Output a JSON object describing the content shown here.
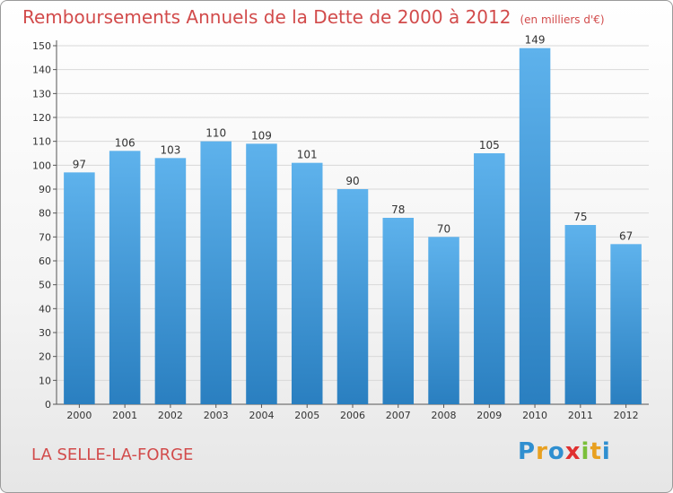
{
  "header": {
    "title": "Remboursements Annuels de la Dette de 2000 à 2012",
    "unit": "(en milliers d'€)"
  },
  "footer": {
    "city": "LA SELLE-LA-FORGE",
    "logo": "Proxiti"
  },
  "colors": {
    "bar_top": "#5eb2ec",
    "bar_bottom": "#2a7fc0",
    "title": "#d24b4b",
    "grid": "#d8d8d8"
  },
  "chart_data": {
    "type": "bar",
    "title": "Remboursements Annuels de la Dette de 2000 à 2012",
    "ylabel": "",
    "xlabel": "",
    "categories": [
      "2000",
      "2001",
      "2002",
      "2003",
      "2004",
      "2005",
      "2006",
      "2007",
      "2008",
      "2009",
      "2010",
      "2011",
      "2012"
    ],
    "values": [
      97,
      106,
      103,
      110,
      109,
      101,
      90,
      78,
      70,
      105,
      149,
      75,
      67
    ],
    "ylim": [
      0,
      150
    ],
    "yticks": [
      0,
      10,
      20,
      30,
      40,
      50,
      60,
      70,
      80,
      90,
      100,
      110,
      120,
      130,
      140,
      150
    ],
    "grid": true,
    "data_labels": true
  }
}
